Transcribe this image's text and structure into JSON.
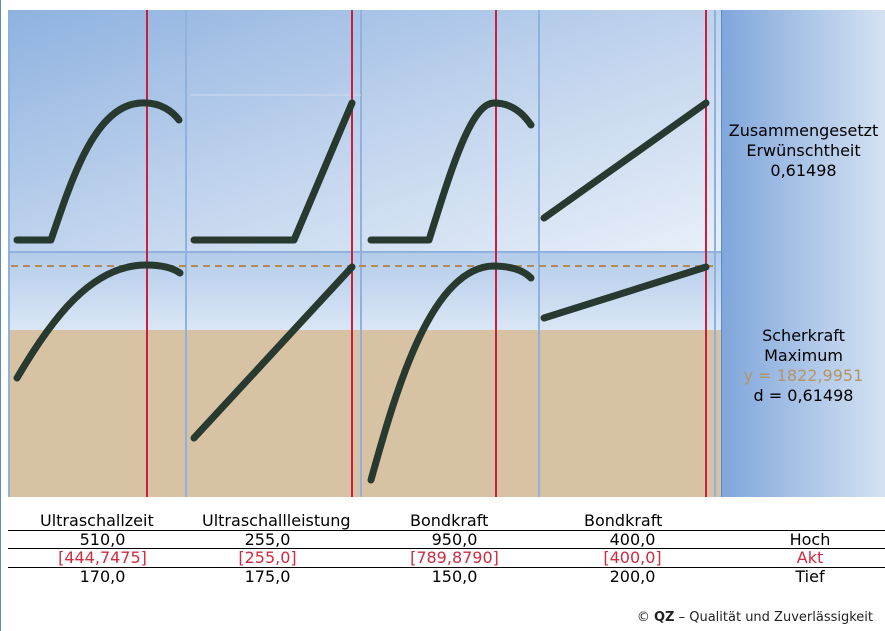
{
  "factors": [
    {
      "name": "Ultraschallzeit",
      "high": "510,0",
      "current": "[444,7475]",
      "low": "170,0"
    },
    {
      "name": "Ultraschallleistung",
      "high": "255,0",
      "current": "[255,0]",
      "low": "175,0"
    },
    {
      "name": "Bondkraft",
      "high": "950,0",
      "current": "[789,8790]",
      "low": "150,0"
    },
    {
      "name": "Bondkraft",
      "high": "400,0",
      "current": "[400,0]",
      "low": "200,0"
    }
  ],
  "row_labels": {
    "high": "Hoch",
    "current": "Akt",
    "low": "Tief"
  },
  "composite": {
    "line1": "Zusammengesetzt",
    "line2": "Erwünschtheit",
    "value": "0,61498"
  },
  "response": {
    "name": "Scherkraft",
    "goal": "Maximum",
    "y_text": "y = 1822,9951",
    "d_text": "d = 0,61498"
  },
  "copyright": {
    "symbol": "©",
    "brand": "QZ",
    "text": "– Qualität und Zuverlässigkeit"
  },
  "colors": {
    "accent_red": "#d02a40",
    "tan_fill": "#d7c3a3",
    "curve": "#283a30",
    "grid_blue": "#8fb1dd"
  }
}
